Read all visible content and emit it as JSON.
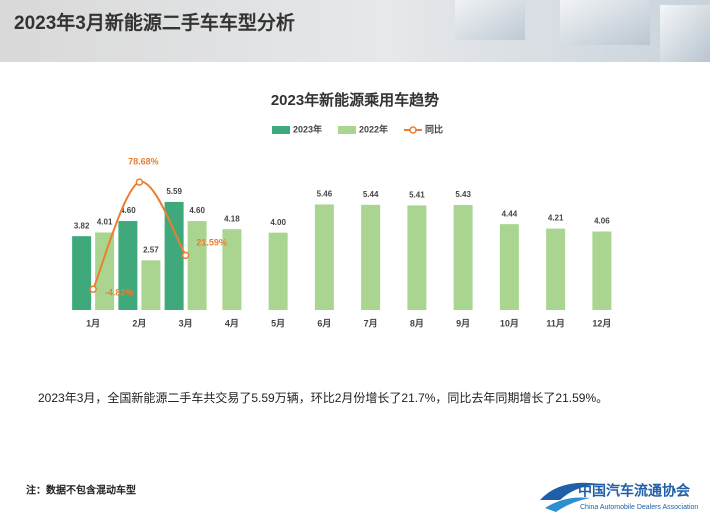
{
  "header": {
    "title": "2023年3月新能源二手车车型分析"
  },
  "chart_data": {
    "type": "bar",
    "title": "2023年新能源乘用车趋势",
    "categories": [
      "1月",
      "2月",
      "3月",
      "4月",
      "5月",
      "6月",
      "7月",
      "8月",
      "9月",
      "10月",
      "11月",
      "12月"
    ],
    "series": [
      {
        "name": "2023年",
        "color": "#3fa97b",
        "values": [
          3.82,
          4.6,
          5.59,
          null,
          null,
          null,
          null,
          null,
          null,
          null,
          null,
          null
        ],
        "value_labels": [
          "3.82",
          "4.60",
          "5.59",
          null,
          null,
          null,
          null,
          null,
          null,
          null,
          null,
          null
        ]
      },
      {
        "name": "2022年",
        "color": "#a9d590",
        "values": [
          4.01,
          2.57,
          4.6,
          4.18,
          4.0,
          5.46,
          5.44,
          5.41,
          5.43,
          4.44,
          4.21,
          4.06
        ],
        "value_labels": [
          "4.01",
          "2.57",
          "4.60",
          "4.18",
          "4.00",
          "5.46",
          "5.44",
          "5.41",
          "5.43",
          "4.44",
          "4.21",
          "4.06"
        ]
      },
      {
        "name": "同比",
        "type": "line",
        "axis": "y2",
        "color": "#ed7d31",
        "values": [
          -4.82,
          78.68,
          21.59,
          null,
          null,
          null,
          null,
          null,
          null,
          null,
          null,
          null
        ],
        "value_labels": [
          "-4.82%",
          "78.68%",
          "21.59%",
          null,
          null,
          null,
          null,
          null,
          null,
          null,
          null,
          null
        ]
      }
    ],
    "ylim": [
      0,
      7.5
    ],
    "y2lim": [
      -21,
      92
    ],
    "legend": "top"
  },
  "text": "2023年3月，全国新能源二手车共交易了5.59万辆，环比2月份增长了21.7%，同比去年同期增长了21.59%。",
  "note": "注：数据不包含混动车型",
  "logo": {
    "name": "中国汽车流通协会",
    "subtitle": "China Automobile Dealers Association"
  }
}
